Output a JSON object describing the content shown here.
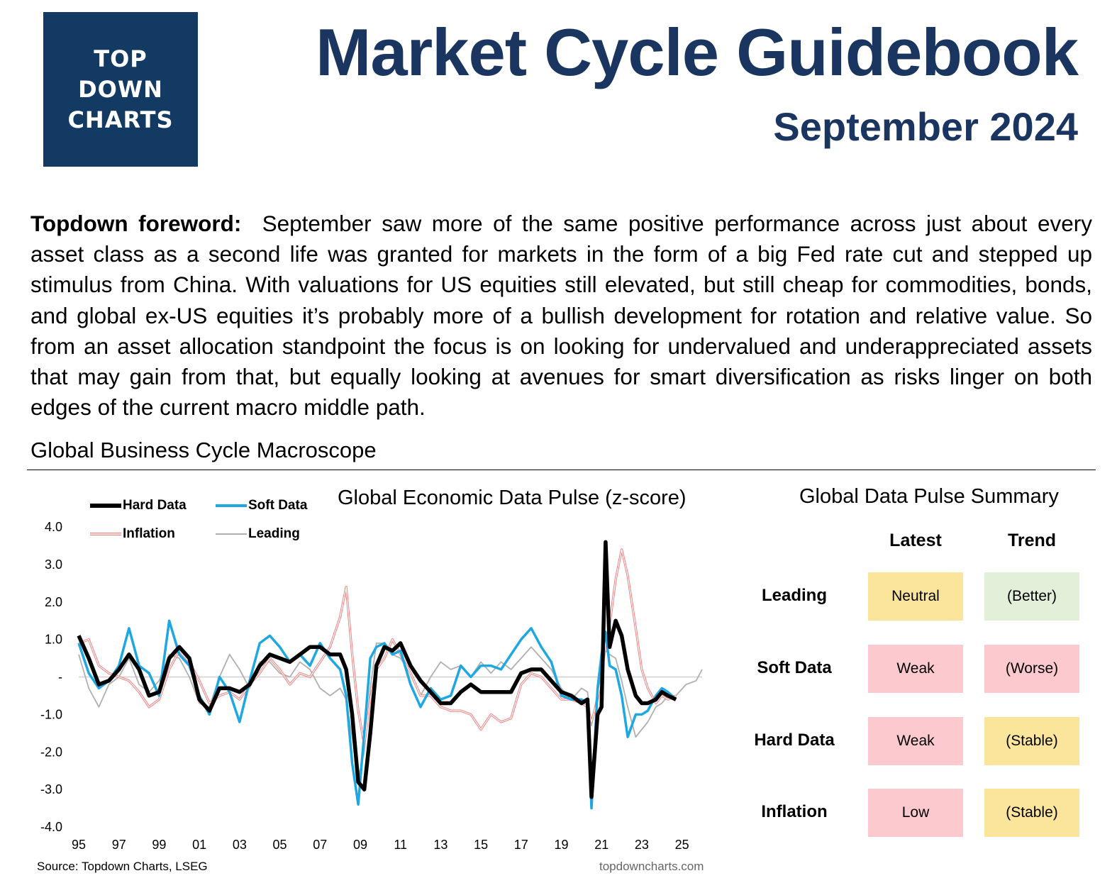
{
  "logo": {
    "lines": [
      "TOP",
      "DOWN",
      "CHARTS"
    ]
  },
  "header": {
    "title": "Market Cycle Guidebook",
    "subtitle": "September 2024"
  },
  "foreword": {
    "lead": "Topdown foreword:",
    "text": "September saw more of the same positive performance across just about every asset class as a second life was granted for markets in the form of a big Fed rate cut and stepped up stimulus from China.  With valuations for US equities still elevated, but still cheap for commodities, bonds, and global ex-US equities it’s probably more of a bullish development for rotation and relative value. So from an asset allocation standpoint the focus is on looking for undervalued and underappreciated assets that may gain from that, but equally looking at avenues for smart diversification as risks linger on both edges of the current macro middle path."
  },
  "section": {
    "title": "Global Business Cycle Macroscope"
  },
  "chart_data": {
    "type": "line",
    "title": "Global Economic Data Pulse (z-score)",
    "legend_position": "top-left",
    "ylim": [
      -4.0,
      4.0
    ],
    "xlim": [
      1995,
      2026
    ],
    "ytick_labels": [
      "4.0",
      "3.0",
      "2.0",
      "1.0",
      "-",
      "-1.0",
      "-2.0",
      "-3.0",
      "-4.0"
    ],
    "xtick_labels": [
      "95",
      "97",
      "99",
      "01",
      "03",
      "05",
      "07",
      "09",
      "11",
      "13",
      "15",
      "17",
      "19",
      "21",
      "23",
      "25"
    ],
    "grid": false,
    "series": [
      {
        "name": "Hard Data",
        "color": "#000000",
        "style": "thick",
        "x": [
          1995,
          1995.5,
          1996,
          1996.5,
          1997,
          1997.5,
          1998,
          1998.5,
          1999,
          1999.5,
          2000,
          2000.5,
          2001,
          2001.5,
          2002,
          2002.5,
          2003,
          2003.5,
          2004,
          2004.5,
          2005,
          2005.5,
          2006,
          2006.5,
          2007,
          2007.5,
          2008,
          2008.3,
          2008.6,
          2008.9,
          2009.2,
          2009.5,
          2009.8,
          2010.2,
          2010.6,
          2011,
          2011.5,
          2012,
          2012.5,
          2013,
          2013.5,
          2014,
          2014.5,
          2015,
          2015.5,
          2016,
          2016.5,
          2017,
          2017.5,
          2018,
          2018.5,
          2019,
          2019.5,
          2020,
          2020.3,
          2020.5,
          2020.8,
          2021,
          2021.2,
          2021.4,
          2021.7,
          2022,
          2022.3,
          2022.7,
          2023,
          2023.3,
          2023.7,
          2024,
          2024.3,
          2024.7
        ],
        "y": [
          1.1,
          0.5,
          -0.2,
          -0.1,
          0.2,
          0.6,
          0.2,
          -0.5,
          -0.4,
          0.5,
          0.8,
          0.5,
          -0.6,
          -0.9,
          -0.3,
          -0.3,
          -0.4,
          -0.2,
          0.3,
          0.6,
          0.5,
          0.4,
          0.6,
          0.8,
          0.8,
          0.6,
          0.6,
          0.2,
          -1.0,
          -2.8,
          -3.0,
          -1.5,
          0.3,
          0.8,
          0.7,
          0.9,
          0.3,
          -0.1,
          -0.4,
          -0.7,
          -0.7,
          -0.4,
          -0.2,
          -0.4,
          -0.4,
          -0.4,
          -0.4,
          0.1,
          0.2,
          0.2,
          -0.1,
          -0.4,
          -0.5,
          -0.7,
          -0.6,
          -3.2,
          -1.0,
          -0.8,
          3.6,
          0.8,
          1.5,
          1.1,
          0.2,
          -0.5,
          -0.7,
          -0.7,
          -0.6,
          -0.4,
          -0.5,
          -0.6
        ]
      },
      {
        "name": "Soft Data",
        "color": "#1ea7e1",
        "style": "medium",
        "x": [
          1995,
          1995.5,
          1996,
          1996.5,
          1997,
          1997.5,
          1998,
          1998.5,
          1999,
          1999.5,
          2000,
          2000.5,
          2001,
          2001.5,
          2002,
          2002.5,
          2003,
          2003.5,
          2004,
          2004.5,
          2005,
          2005.5,
          2006,
          2006.5,
          2007,
          2007.5,
          2008,
          2008.3,
          2008.6,
          2008.9,
          2009.2,
          2009.5,
          2009.8,
          2010.2,
          2010.6,
          2011,
          2011.5,
          2012,
          2012.5,
          2013,
          2013.5,
          2014,
          2014.5,
          2015,
          2015.5,
          2016,
          2016.5,
          2017,
          2017.5,
          2018,
          2018.5,
          2019,
          2019.5,
          2020,
          2020.3,
          2020.5,
          2020.8,
          2021,
          2021.2,
          2021.4,
          2021.7,
          2022,
          2022.3,
          2022.7,
          2023,
          2023.3,
          2023.7,
          2024,
          2024.3,
          2024.7
        ],
        "y": [
          0.9,
          0.1,
          -0.3,
          -0.1,
          0.3,
          1.3,
          0.3,
          0.1,
          -0.5,
          1.5,
          0.6,
          0.3,
          -0.5,
          -1.0,
          0.0,
          -0.4,
          -1.2,
          -0.1,
          0.9,
          1.1,
          0.8,
          0.4,
          0.6,
          0.3,
          0.9,
          0.5,
          0.2,
          -0.5,
          -2.3,
          -3.4,
          -1.5,
          0.5,
          0.8,
          0.9,
          0.6,
          0.7,
          -0.2,
          -0.8,
          -0.3,
          -0.6,
          -0.5,
          0.3,
          0.0,
          0.3,
          0.3,
          0.2,
          0.6,
          1.0,
          1.3,
          0.8,
          0.4,
          -0.5,
          -0.6,
          -0.6,
          -0.7,
          -3.5,
          -0.3,
          0.6,
          1.2,
          0.3,
          0.2,
          -0.5,
          -1.6,
          -1.0,
          -1.0,
          -0.9,
          -0.5,
          -0.3,
          -0.4,
          -0.6
        ]
      },
      {
        "name": "Inflation",
        "color": "#f08080",
        "style": "outline",
        "x": [
          1995,
          1995.5,
          1996,
          1996.5,
          1997,
          1997.5,
          1998,
          1998.5,
          1999,
          1999.5,
          2000,
          2000.5,
          2001,
          2001.5,
          2002,
          2002.5,
          2003,
          2003.5,
          2004,
          2004.5,
          2005,
          2005.5,
          2006,
          2006.5,
          2007,
          2007.5,
          2008,
          2008.3,
          2008.6,
          2008.9,
          2009.2,
          2009.5,
          2009.8,
          2010.2,
          2010.6,
          2011,
          2011.5,
          2012,
          2012.5,
          2013,
          2013.5,
          2014,
          2014.5,
          2015,
          2015.5,
          2016,
          2016.5,
          2017,
          2017.5,
          2018,
          2018.5,
          2019,
          2019.5,
          2020,
          2020.3,
          2020.5,
          2020.8,
          2021,
          2021.2,
          2021.4,
          2021.7,
          2022,
          2022.3,
          2022.7,
          2023,
          2023.3,
          2023.7,
          2024,
          2024.3,
          2024.7
        ],
        "y": [
          0.9,
          1.0,
          0.3,
          0.1,
          0.0,
          -0.1,
          -0.4,
          -0.8,
          -0.6,
          0.2,
          0.7,
          0.4,
          -0.1,
          -0.7,
          -0.5,
          -0.4,
          -0.6,
          -0.2,
          0.1,
          0.5,
          0.2,
          -0.2,
          0.1,
          0.0,
          0.4,
          0.8,
          1.6,
          2.4,
          0.6,
          -0.9,
          -1.8,
          -0.6,
          0.2,
          0.5,
          1.0,
          0.6,
          0.1,
          -0.5,
          -0.5,
          -0.8,
          -0.9,
          -0.9,
          -1.0,
          -1.4,
          -1.0,
          -1.2,
          -1.1,
          -0.2,
          0.1,
          0.0,
          -0.3,
          -0.6,
          -0.6,
          -0.7,
          -0.8,
          -1.2,
          -0.6,
          0.0,
          0.9,
          1.4,
          2.6,
          3.4,
          2.7,
          1.3,
          0.2,
          -0.3,
          -0.7,
          -0.5,
          -0.6,
          -0.5
        ]
      },
      {
        "name": "Leading",
        "color": "#b0b0b0",
        "style": "thin",
        "x": [
          1995,
          1995.5,
          1996,
          1996.5,
          1997,
          1997.5,
          1998,
          1998.5,
          1999,
          1999.5,
          2000,
          2000.5,
          2001,
          2001.5,
          2002,
          2002.5,
          2003,
          2003.5,
          2004,
          2004.5,
          2005,
          2005.5,
          2006,
          2006.5,
          2007,
          2007.5,
          2008,
          2008.3,
          2008.6,
          2008.9,
          2009.2,
          2009.5,
          2009.8,
          2010.2,
          2010.6,
          2011,
          2011.5,
          2012,
          2012.5,
          2013,
          2013.5,
          2014,
          2014.5,
          2015,
          2015.5,
          2016,
          2016.5,
          2017,
          2017.5,
          2018,
          2018.5,
          2019,
          2019.5,
          2020,
          2020.3,
          2020.5,
          2020.8,
          2021,
          2021.2,
          2021.4,
          2021.7,
          2022,
          2022.3,
          2022.7,
          2023,
          2023.3,
          2023.7,
          2024,
          2024.3,
          2024.7,
          2025.2,
          2025.7,
          2026
        ],
        "y": [
          0.6,
          -0.3,
          -0.8,
          -0.2,
          0.0,
          0.5,
          -0.2,
          -0.4,
          -0.1,
          0.6,
          0.5,
          0.0,
          -0.7,
          -0.8,
          0.0,
          0.6,
          0.2,
          -0.3,
          0.4,
          0.4,
          0.1,
          0.0,
          0.4,
          0.2,
          -0.3,
          -0.5,
          -0.3,
          -0.6,
          -1.6,
          -2.7,
          -2.0,
          -0.3,
          0.9,
          0.9,
          0.6,
          0.5,
          0.1,
          -0.5,
          0.0,
          0.4,
          0.2,
          0.3,
          0.0,
          0.4,
          0.1,
          0.4,
          0.2,
          0.5,
          0.8,
          0.5,
          0.2,
          -0.3,
          -0.6,
          -0.3,
          -0.4,
          -1.3,
          -0.4,
          0.3,
          0.7,
          0.6,
          0.5,
          -0.1,
          -0.8,
          -1.6,
          -1.4,
          -1.2,
          -0.8,
          -0.7,
          -0.5,
          -0.5,
          -0.2,
          -0.1,
          0.2
        ]
      }
    ]
  },
  "chart_footer": {
    "source": "Source: Topdown Charts, LSEG",
    "site": "topdowncharts.com"
  },
  "summary": {
    "title": "Global Data Pulse Summary",
    "col_latest": "Latest",
    "col_trend": "Trend",
    "rows": [
      {
        "label": "Leading",
        "latest": "Neutral",
        "latest_color": "#fbe59a",
        "trend": "(Better)",
        "trend_color": "#e2efd9"
      },
      {
        "label": "Soft Data",
        "latest": "Weak",
        "latest_color": "#fcc9cf",
        "trend": "(Worse)",
        "trend_color": "#fcc9cf"
      },
      {
        "label": "Hard Data",
        "latest": "Weak",
        "latest_color": "#fcc9cf",
        "trend": "(Stable)",
        "trend_color": "#fbe59a"
      },
      {
        "label": "Inflation",
        "latest": "Low",
        "latest_color": "#fcc9cf",
        "trend": "(Stable)",
        "trend_color": "#fbe59a"
      }
    ]
  }
}
